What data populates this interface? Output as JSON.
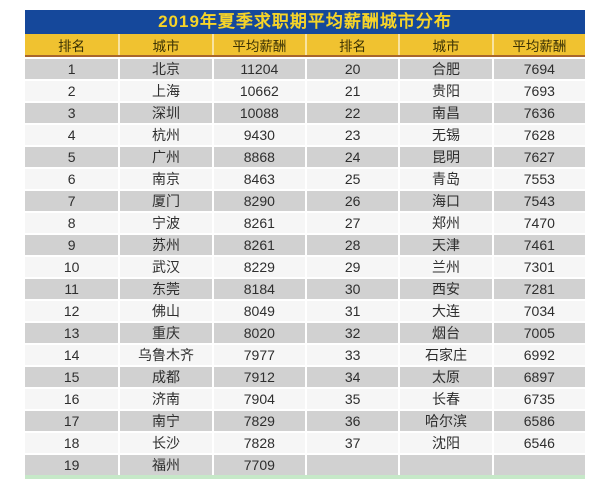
{
  "title": "2019年夏季求职期平均薪酬城市分布",
  "headers": [
    "排名",
    "城市",
    "平均薪酬",
    "排名",
    "城市",
    "平均薪酬"
  ],
  "chart_data": {
    "type": "table",
    "title": "2019年夏季求职期平均薪酬城市分布",
    "columns": [
      "排名",
      "城市",
      "平均薪酬"
    ],
    "rows": [
      [
        1,
        "北京",
        11204
      ],
      [
        2,
        "上海",
        10662
      ],
      [
        3,
        "深圳",
        10088
      ],
      [
        4,
        "杭州",
        9430
      ],
      [
        5,
        "广州",
        8868
      ],
      [
        6,
        "南京",
        8463
      ],
      [
        7,
        "厦门",
        8290
      ],
      [
        8,
        "宁波",
        8261
      ],
      [
        9,
        "苏州",
        8261
      ],
      [
        10,
        "武汉",
        8229
      ],
      [
        11,
        "东莞",
        8184
      ],
      [
        12,
        "佛山",
        8049
      ],
      [
        13,
        "重庆",
        8020
      ],
      [
        14,
        "乌鲁木齐",
        7977
      ],
      [
        15,
        "成都",
        7912
      ],
      [
        16,
        "济南",
        7904
      ],
      [
        17,
        "南宁",
        7829
      ],
      [
        18,
        "长沙",
        7828
      ],
      [
        19,
        "福州",
        7709
      ],
      [
        20,
        "合肥",
        7694
      ],
      [
        21,
        "贵阳",
        7693
      ],
      [
        22,
        "南昌",
        7636
      ],
      [
        23,
        "无锡",
        7628
      ],
      [
        24,
        "昆明",
        7627
      ],
      [
        25,
        "青岛",
        7553
      ],
      [
        26,
        "海口",
        7543
      ],
      [
        27,
        "郑州",
        7470
      ],
      [
        28,
        "天津",
        7461
      ],
      [
        29,
        "兰州",
        7301
      ],
      [
        30,
        "西安",
        7281
      ],
      [
        31,
        "大连",
        7034
      ],
      [
        32,
        "烟台",
        7005
      ],
      [
        33,
        "石家庄",
        6992
      ],
      [
        34,
        "太原",
        6897
      ],
      [
        35,
        "长春",
        6735
      ],
      [
        36,
        "哈尔滨",
        6586
      ],
      [
        37,
        "沈阳",
        6546
      ]
    ],
    "panel_split": 19,
    "layout": "two side-by-side panels: ranks 1-19 left, ranks 20-37 right; odd display rows shaded gray"
  },
  "colors": {
    "title_bar_bg": "#15489B",
    "title_text": "#F6D428",
    "header_bg": "#F0C230",
    "header_divider": "#A9662C",
    "row_odd_bg": "#D1D1D1",
    "row_even_bg": "#F6F6F6",
    "cell_text": "#2E2E2E",
    "footer_strip": "#C6E8C8"
  }
}
